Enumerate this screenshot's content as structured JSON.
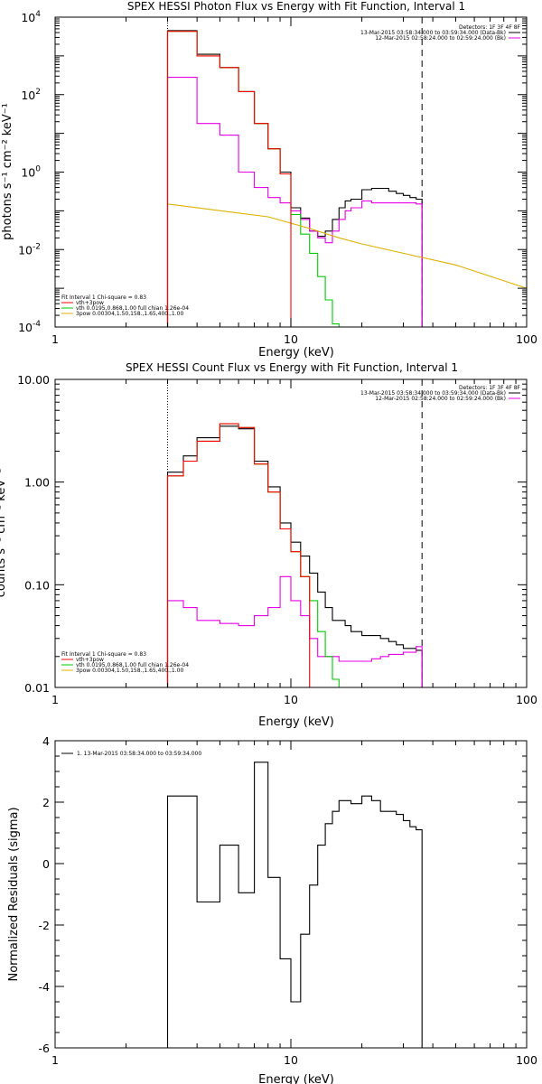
{
  "chart_data": [
    {
      "id": "photon",
      "type": "line",
      "title": "SPEX HESSI Photon Flux vs Energy with Fit Function, Interval 1",
      "xlabel": "Energy (keV)",
      "ylabel": "photons s⁻¹ cm⁻² keV⁻¹",
      "xscale": "log",
      "yscale": "log",
      "xlim": [
        1,
        100
      ],
      "ylim": [
        0.0001,
        10000
      ],
      "xticks": [
        {
          "v": 1,
          "label": "1"
        },
        {
          "v": 10,
          "label": "10"
        },
        {
          "v": 100,
          "label": "100"
        }
      ],
      "yticks": [
        {
          "v": 0.0001,
          "base": "10",
          "exp": "-4"
        },
        {
          "v": 0.01,
          "base": "10",
          "exp": "-2"
        },
        {
          "v": 1,
          "base": "10",
          "exp": "0"
        },
        {
          "v": 100,
          "base": "10",
          "exp": "2"
        },
        {
          "v": 10000,
          "base": "10",
          "exp": "4"
        }
      ],
      "header_right": [
        "Detectors: 1F 3F 4F 8F",
        "13-Mar-2015 03:58:34.000 to 03:59:34.000 (Data-Bk)",
        "12-Mar-2015 02:58:24.000 to 02:59:24.000 (Bk)"
      ],
      "legend": [
        "Fit Interval  1    Chi-square = 0.83",
        "vth+3pow",
        "vth 0.0195,0.868,1.00   full chian 1.26e-04",
        "3pow 0.00304,1.50,158.,1.65,400.,1.00"
      ],
      "energy_edges": [
        3,
        3.5,
        4,
        4.5,
        5,
        6,
        7,
        8,
        9,
        10,
        11,
        12,
        13,
        14,
        15,
        16,
        17,
        18,
        20,
        22,
        24,
        26,
        28,
        30,
        32,
        34,
        36
      ],
      "cutoffs": {
        "dotted": 3,
        "dashed": 36
      },
      "series": [
        {
          "role": "data",
          "color": "#000000",
          "values": [
            4500,
            4500,
            1100,
            1100,
            500,
            120,
            18,
            4,
            1,
            0.12,
            0.065,
            0.03,
            0.022,
            0.03,
            0.06,
            0.12,
            0.18,
            0.2,
            0.35,
            0.38,
            0.38,
            0.32,
            0.28,
            0.25,
            0.22,
            0.2
          ]
        },
        {
          "role": "background",
          "color": "#e800e8",
          "values": [
            280,
            280,
            18,
            18,
            9,
            1,
            0.4,
            0.22,
            0.16,
            0.1,
            0.06,
            0.03,
            0.02,
            0.015,
            0.03,
            0.06,
            0.1,
            0.12,
            0.18,
            0.16,
            0.16,
            0.16,
            0.16,
            0.16,
            0.16,
            0.15
          ]
        },
        {
          "role": "thermal",
          "color": "#00cc00",
          "values": [
            4300,
            4300,
            1000,
            1000,
            500,
            120,
            18,
            4,
            0.9,
            0.08,
            0.025,
            0.008,
            0.002,
            0.0005,
            0.00012,
            0.0001
          ]
        },
        {
          "role": "powerlaw",
          "color": "#e0b000",
          "x": [
            3,
            8,
            12,
            16,
            20,
            30,
            50,
            100
          ],
          "values": [
            0.15,
            0.07,
            0.035,
            0.02,
            0.014,
            0.008,
            0.004,
            0.001
          ]
        },
        {
          "role": "total",
          "color": "#ff0000",
          "values": [
            4300,
            4300,
            1000,
            1000,
            500,
            120,
            18,
            4,
            0.9
          ]
        }
      ]
    },
    {
      "id": "count",
      "type": "line",
      "title": "SPEX HESSI Count Flux vs Energy with Fit Function, Interval 1",
      "xlabel": "Energy (keV)",
      "ylabel": "counts s⁻¹ cm⁻² keV⁻¹",
      "xscale": "log",
      "yscale": "log",
      "xlim": [
        1,
        100
      ],
      "ylim": [
        0.01,
        10
      ],
      "xticks": [
        {
          "v": 1,
          "label": "1"
        },
        {
          "v": 10,
          "label": "10"
        },
        {
          "v": 100,
          "label": "100"
        }
      ],
      "yticks": [
        {
          "v": 0.01,
          "label": "0.01"
        },
        {
          "v": 0.1,
          "label": "0.10"
        },
        {
          "v": 1,
          "label": "1.00"
        },
        {
          "v": 10,
          "label": "10.00"
        }
      ],
      "header_right": [
        "Detectors: 1F 3F 4F 8F",
        "13-Mar-2015 03:58:34.000 to 03:59:34.000 (Data-Bk)",
        "12-Mar-2015 02:58:24.000 to 02:59:24.000 (Bk)"
      ],
      "legend": [
        "Fit Interval  1    Chi-square = 0.83",
        "vth+3pow",
        "vth 0.0195,0.868,1.00   full chian 1.26e-04",
        "3pow 0.00304,1.50,158.,1.65,400.,1.00"
      ],
      "energy_edges": [
        3,
        3.5,
        4,
        4.5,
        5,
        6,
        7,
        8,
        9,
        10,
        11,
        12,
        13,
        14,
        15,
        16,
        17,
        18,
        20,
        22,
        24,
        26,
        28,
        30,
        32,
        34,
        36
      ],
      "cutoffs": {
        "dotted": 3,
        "dashed": 36
      },
      "series": [
        {
          "role": "data",
          "color": "#000000",
          "values": [
            1.25,
            1.8,
            2.7,
            2.7,
            3.5,
            3.3,
            1.6,
            0.9,
            0.4,
            0.26,
            0.19,
            0.13,
            0.085,
            0.06,
            0.045,
            0.045,
            0.04,
            0.035,
            0.032,
            0.032,
            0.03,
            0.028,
            0.026,
            0.024,
            0.024,
            0.023
          ]
        },
        {
          "role": "background",
          "color": "#e800e8",
          "values": [
            0.07,
            0.06,
            0.045,
            0.045,
            0.042,
            0.04,
            0.05,
            0.06,
            0.12,
            0.07,
            0.05,
            0.03,
            0.02,
            0.02,
            0.02,
            0.018,
            0.018,
            0.018,
            0.018,
            0.019,
            0.02,
            0.021,
            0.021,
            0.022,
            0.022,
            0.025
          ]
        },
        {
          "role": "thermal",
          "color": "#00cc00",
          "values": [
            1.15,
            1.6,
            2.5,
            2.5,
            3.7,
            3.4,
            1.5,
            0.8,
            0.35,
            0.21,
            0.12,
            0.07,
            0.035,
            0.02,
            0.012,
            0.01
          ]
        },
        {
          "role": "total",
          "color": "#ff0000",
          "values": [
            1.15,
            1.6,
            2.5,
            2.5,
            3.7,
            3.4,
            1.5,
            0.8,
            0.35,
            0.21,
            0.12
          ]
        }
      ]
    },
    {
      "id": "resid",
      "type": "line",
      "title": "",
      "xlabel": "Energy (keV)",
      "ylabel": "Normalized Residuals (sigma)",
      "xscale": "log",
      "yscale": "linear",
      "xlim": [
        1,
        100
      ],
      "ylim": [
        -6,
        4
      ],
      "xticks": [
        {
          "v": 1,
          "label": "1"
        },
        {
          "v": 10,
          "label": "10"
        },
        {
          "v": 100,
          "label": "100"
        }
      ],
      "yticks": [
        {
          "v": -6,
          "label": "-6"
        },
        {
          "v": -4,
          "label": "-4"
        },
        {
          "v": -2,
          "label": "-2"
        },
        {
          "v": 0,
          "label": "0"
        },
        {
          "v": 2,
          "label": "2"
        },
        {
          "v": 4,
          "label": "4"
        }
      ],
      "legend": [
        "1. 13-Mar-2015 03:58:34.000 to 03:59:34.000"
      ],
      "energy_edges": [
        3,
        3.5,
        4,
        4.5,
        5,
        6,
        7,
        8,
        9,
        10,
        11,
        12,
        13,
        14,
        15,
        16,
        17,
        18,
        20,
        22,
        24,
        26,
        28,
        30,
        32,
        34,
        36
      ],
      "series": [
        {
          "role": "residual",
          "color": "#000000",
          "values": [
            2.2,
            2.2,
            -1.25,
            -1.25,
            0.6,
            -0.95,
            3.3,
            -0.45,
            -3.1,
            -4.5,
            -2.3,
            -0.7,
            0.6,
            1.3,
            1.7,
            2.05,
            2.05,
            1.95,
            2.2,
            2.05,
            1.7,
            1.7,
            1.6,
            1.4,
            1.2,
            1.1
          ]
        }
      ]
    }
  ]
}
